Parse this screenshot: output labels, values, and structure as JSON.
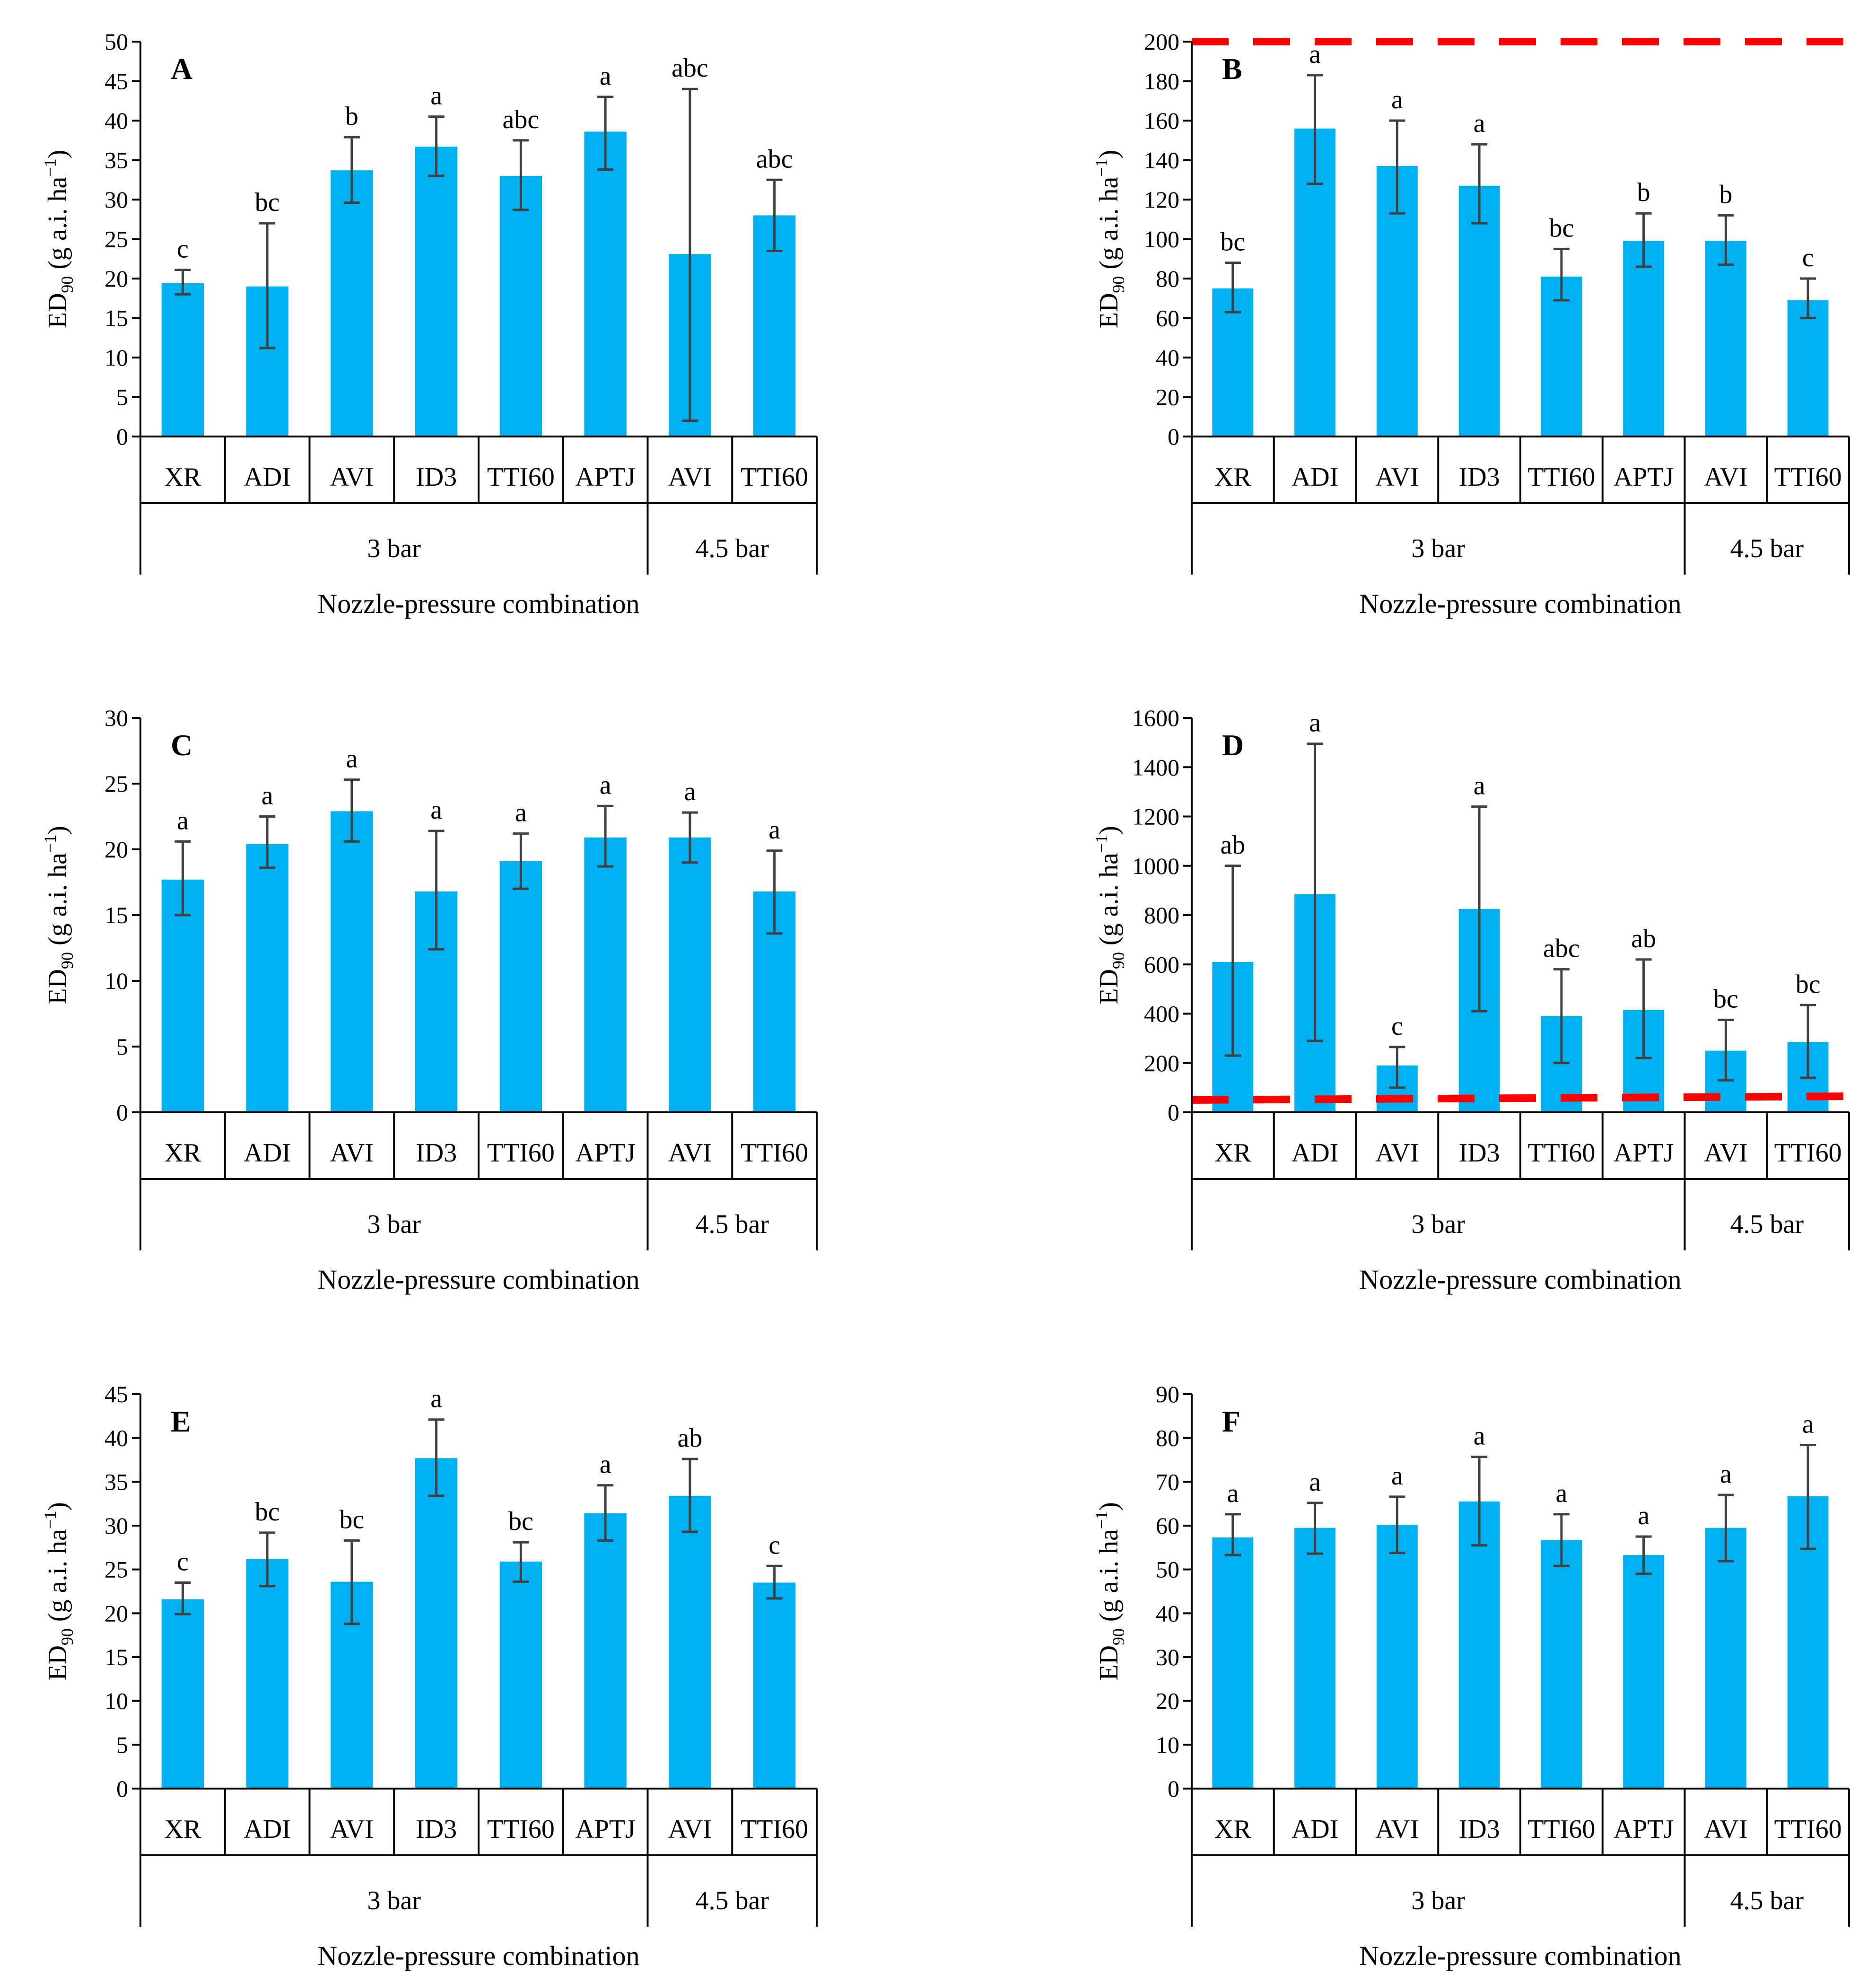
{
  "figure": {
    "xlabel": "Nozzle-pressure combination",
    "ylabel_main": "ED",
    "ylabel_sub": "90",
    "ylabel_rest": " (g a.i. ha",
    "ylabel_sup": "−1",
    "ylabel_close": ")",
    "groups": [
      {
        "label": "3 bar",
        "span": 6
      },
      {
        "label": "4.5 bar",
        "span": 2
      }
    ],
    "colors": {
      "bar": "#00B0F0",
      "error": "#404040",
      "axis": "#000000",
      "reference_line": "#FF0000"
    }
  },
  "chart_data": [
    {
      "panel": "A",
      "type": "bar",
      "categories": [
        "XR",
        "ADI",
        "AVI",
        "ID3",
        "TTI60",
        "APTJ",
        "AVI",
        "TTI60"
      ],
      "values": [
        19.4,
        19.0,
        33.7,
        36.7,
        33.0,
        38.6,
        23.1,
        28.0
      ],
      "error_low": [
        18.0,
        11.2,
        29.6,
        33.0,
        28.7,
        33.8,
        2.0,
        23.5
      ],
      "error_high": [
        21.1,
        27.0,
        37.9,
        40.5,
        37.5,
        43.0,
        44.0,
        32.5
      ],
      "letters": [
        "c",
        "bc",
        "b",
        "a",
        "abc",
        "a",
        "abc",
        "abc"
      ],
      "ylim": [
        0,
        50
      ],
      "ytick_step": 5,
      "grid": false
    },
    {
      "panel": "B",
      "type": "bar",
      "categories": [
        "XR",
        "ADI",
        "AVI",
        "ID3",
        "TTI60",
        "APTJ",
        "AVI",
        "TTI60"
      ],
      "values": [
        75,
        156,
        137,
        127,
        81,
        99,
        99,
        69
      ],
      "error_low": [
        63,
        128,
        113,
        108,
        69,
        86,
        87,
        60
      ],
      "error_high": [
        88,
        183,
        160,
        148,
        95,
        113,
        112,
        80
      ],
      "letters": [
        "bc",
        "a",
        "a",
        "a",
        "bc",
        "b",
        "b",
        "c"
      ],
      "reference_line": [
        200,
        200
      ],
      "ylim": [
        0,
        200
      ],
      "ytick_step": 20,
      "grid": false
    },
    {
      "panel": "C",
      "type": "bar",
      "categories": [
        "XR",
        "ADI",
        "AVI",
        "ID3",
        "TTI60",
        "APTJ",
        "AVI",
        "TTI60"
      ],
      "values": [
        17.7,
        20.4,
        22.9,
        16.8,
        19.1,
        20.9,
        20.9,
        16.8
      ],
      "error_low": [
        15.0,
        18.6,
        20.6,
        12.4,
        17.0,
        18.7,
        19.0,
        13.6
      ],
      "error_high": [
        20.6,
        22.5,
        25.3,
        21.4,
        21.2,
        23.3,
        22.8,
        19.9
      ],
      "letters": [
        "a",
        "a",
        "a",
        "a",
        "a",
        "a",
        "a",
        "a"
      ],
      "ylim": [
        0,
        30
      ],
      "ytick_step": 5,
      "grid": false
    },
    {
      "panel": "D",
      "type": "bar",
      "categories": [
        "XR",
        "ADI",
        "AVI",
        "ID3",
        "TTI60",
        "APTJ",
        "AVI",
        "TTI60"
      ],
      "values": [
        610,
        885,
        190,
        825,
        390,
        415,
        250,
        285
      ],
      "error_low": [
        230,
        290,
        100,
        410,
        200,
        220,
        130,
        140
      ],
      "error_high": [
        1000,
        1495,
        265,
        1240,
        580,
        620,
        375,
        435
      ],
      "letters": [
        "ab",
        "a",
        "c",
        "a",
        "abc",
        "ab",
        "bc",
        "bc"
      ],
      "reference_line": [
        50,
        65
      ],
      "ylim": [
        0,
        1600
      ],
      "ytick_step": 200,
      "grid": false
    },
    {
      "panel": "E",
      "type": "bar",
      "categories": [
        "XR",
        "ADI",
        "AVI",
        "ID3",
        "TTI60",
        "APTJ",
        "AVI",
        "TTI60"
      ],
      "values": [
        21.6,
        26.2,
        23.6,
        37.7,
        25.9,
        31.4,
        33.4,
        23.5
      ],
      "error_low": [
        19.9,
        23.1,
        18.8,
        33.4,
        23.6,
        28.3,
        29.3,
        21.7
      ],
      "error_high": [
        23.5,
        29.2,
        28.3,
        42.1,
        28.1,
        34.6,
        37.6,
        25.4
      ],
      "letters": [
        "c",
        "bc",
        "bc",
        "a",
        "bc",
        "a",
        "ab",
        "c"
      ],
      "ylim": [
        0,
        45
      ],
      "ytick_step": 5,
      "grid": false
    },
    {
      "panel": "F",
      "type": "bar",
      "categories": [
        "XR",
        "ADI",
        "AVI",
        "ID3",
        "TTI60",
        "APTJ",
        "AVI",
        "TTI60"
      ],
      "values": [
        57.3,
        59.5,
        60.2,
        65.5,
        56.7,
        53.3,
        59.5,
        66.7
      ],
      "error_low": [
        53.3,
        53.6,
        53.8,
        55.5,
        50.8,
        49.0,
        51.9,
        54.7
      ],
      "error_high": [
        62.6,
        65.2,
        66.6,
        75.7,
        62.6,
        57.5,
        67.0,
        78.4
      ],
      "letters": [
        "a",
        "a",
        "a",
        "a",
        "a",
        "a",
        "a",
        "a"
      ],
      "ylim": [
        0,
        90
      ],
      "ytick_step": 10,
      "grid": false
    }
  ]
}
